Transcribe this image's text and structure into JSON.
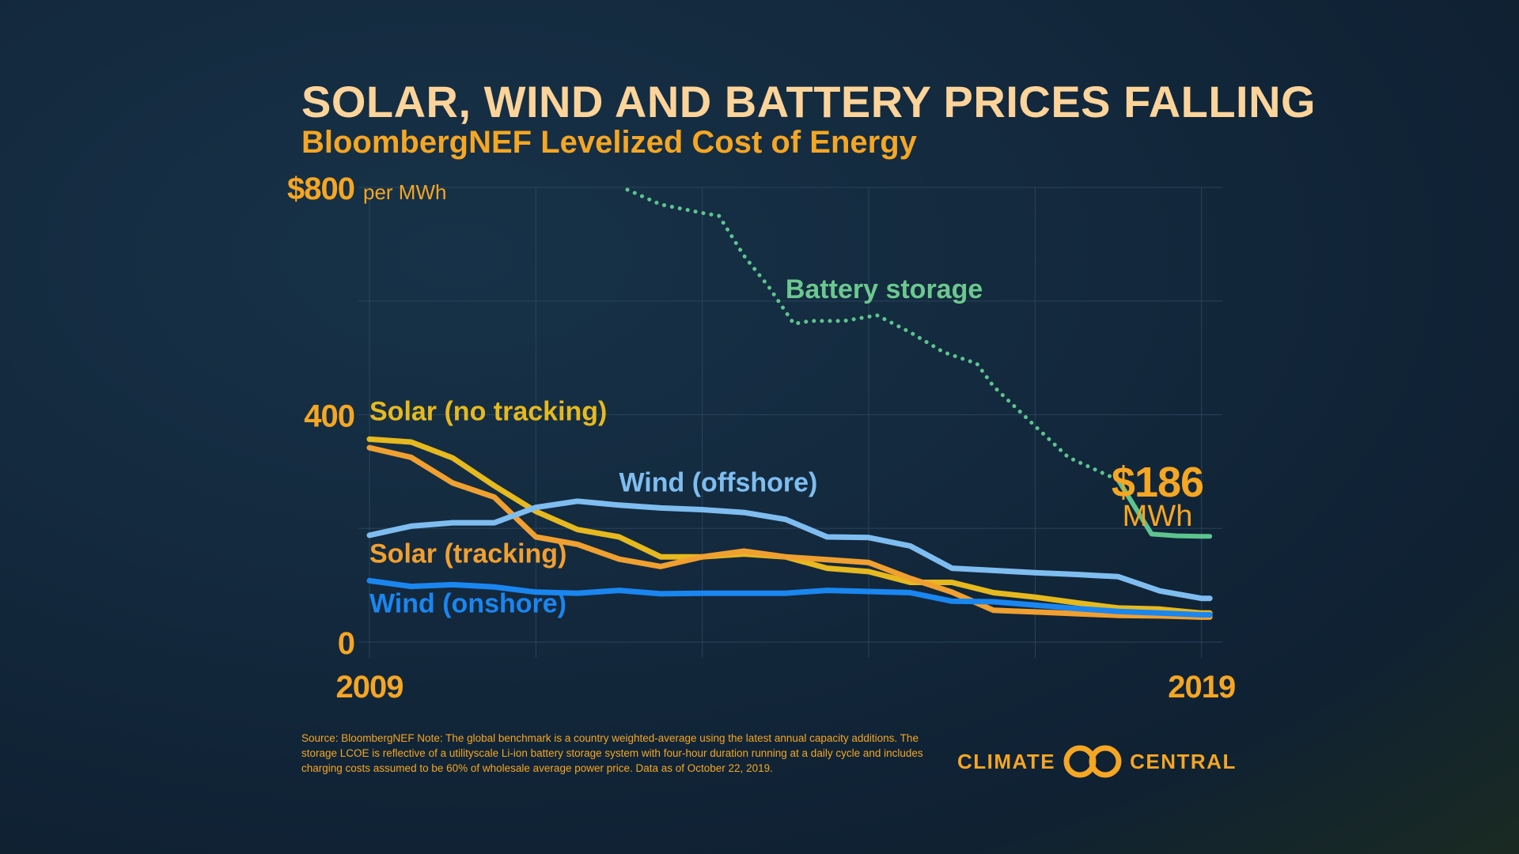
{
  "header": {
    "title": "SOLAR, WIND AND BATTERY PRICES FALLING",
    "subtitle": "BloombergNEF Levelized Cost of Energy"
  },
  "chart_data": {
    "type": "line",
    "ylim": [
      0,
      800
    ],
    "xlim": [
      2009,
      2019.25
    ],
    "grid": true,
    "ytick_labels": [
      {
        "value": 800,
        "label": "$800"
      },
      {
        "value": 400,
        "label": "400"
      },
      {
        "value": 0,
        "label": "0"
      }
    ],
    "ylabel_unit": "per MWh",
    "xtick_labels": [
      {
        "value": 2009,
        "label": "2009"
      },
      {
        "value": 2019,
        "label": "2019"
      }
    ],
    "series": [
      {
        "name": "Battery storage",
        "color": "#5dc48f",
        "style": "dotted",
        "solid_from_x": 2018.0,
        "x": [
          2012.1,
          2012.5,
          2013.0,
          2013.2,
          2013.5,
          2013.8,
          2014.1,
          2014.3,
          2014.7,
          2015.1,
          2015.5,
          2015.9,
          2016.3,
          2016.5,
          2017.0,
          2017.4,
          2017.7,
          2018.0,
          2018.4,
          2018.7,
          2019.0,
          2019.1
        ],
        "values": [
          796,
          770,
          755,
          750,
          680,
          625,
          560,
          565,
          565,
          575,
          545,
          510,
          490,
          450,
          380,
          325,
          305,
          285,
          190,
          187,
          186,
          186
        ]
      },
      {
        "name": "Solar (no tracking)",
        "color": "#e6b91e",
        "x": [
          2009.0,
          2009.5,
          2010.0,
          2010.5,
          2011.0,
          2011.5,
          2012.0,
          2012.5,
          2013.0,
          2013.5,
          2014.0,
          2014.5,
          2015.0,
          2015.5,
          2016.0,
          2016.5,
          2017.0,
          2017.5,
          2018.0,
          2018.5,
          2019.0,
          2019.1
        ],
        "values": [
          357,
          352,
          324,
          275,
          230,
          198,
          185,
          150,
          150,
          155,
          150,
          130,
          124,
          105,
          105,
          87,
          79,
          69,
          60,
          58,
          51,
          51
        ]
      },
      {
        "name": "Solar (tracking)",
        "color": "#f0a030",
        "x": [
          2009.0,
          2009.5,
          2010.0,
          2010.5,
          2011.0,
          2011.5,
          2012.0,
          2012.5,
          2013.0,
          2013.5,
          2014.0,
          2014.5,
          2015.0,
          2015.5,
          2016.0,
          2016.5,
          2017.0,
          2017.5,
          2018.0,
          2018.5,
          2019.0,
          2019.1
        ],
        "values": [
          342,
          325,
          280,
          255,
          185,
          172,
          146,
          133,
          150,
          160,
          150,
          145,
          140,
          112,
          88,
          56,
          53,
          50,
          47,
          46,
          44,
          44
        ]
      },
      {
        "name": "Wind (offshore)",
        "color": "#7fbdf0",
        "x": [
          2009.0,
          2009.5,
          2010.0,
          2010.5,
          2011.0,
          2011.5,
          2012.0,
          2012.5,
          2013.0,
          2013.5,
          2014.0,
          2014.5,
          2015.0,
          2015.5,
          2016.0,
          2016.5,
          2017.0,
          2017.5,
          2018.0,
          2018.5,
          2019.0,
          2019.1
        ],
        "values": [
          188,
          204,
          210,
          210,
          237,
          248,
          241,
          236,
          233,
          228,
          216,
          185,
          184,
          169,
          130,
          126,
          122,
          119,
          115,
          90,
          77,
          77
        ]
      },
      {
        "name": "Wind (onshore)",
        "color": "#1a86f0",
        "x": [
          2009.0,
          2009.5,
          2010.0,
          2010.5,
          2011.0,
          2011.5,
          2012.0,
          2012.5,
          2013.0,
          2013.5,
          2014.0,
          2014.5,
          2015.0,
          2015.5,
          2016.0,
          2016.5,
          2017.0,
          2017.5,
          2018.0,
          2018.5,
          2019.0,
          2019.1
        ],
        "values": [
          108,
          98,
          101,
          97,
          88,
          86,
          91,
          85,
          86,
          86,
          86,
          91,
          89,
          87,
          72,
          71,
          65,
          59,
          54,
          51,
          48,
          48
        ]
      }
    ],
    "annotation": {
      "value": "$186",
      "unit": "MWh"
    }
  },
  "footer": {
    "source": "Source: BloombergNEF Note: The global benchmark is a country weighted-average using the latest annual capacity additions. The storage LCOE is reflective of a utilityscale Li-ion battery storage system with four-hour duration running at a daily cycle and includes charging costs assumed to be 60% of wholesale average power price. Data as of October 22, 2019.",
    "logo_left": "CLIMATE",
    "logo_right": "CENTRAL"
  }
}
